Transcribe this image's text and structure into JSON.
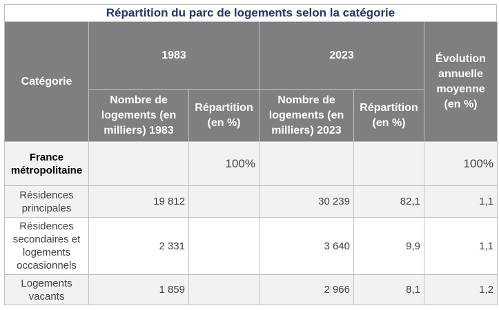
{
  "title": "Répartition du parc de logements selon la catégorie",
  "header": {
    "categorie": "Catégorie",
    "year1": "1983",
    "year2": "2023",
    "evolution": "Évolution annuelle moyenne (en %)",
    "nombre1983": "Nombre de logements (en milliers) 1983",
    "repartition1": "Répartition (en %)",
    "nombre2023": "Nombre de logements (en milliers) 2023",
    "repartition2": "Répartition (en %)"
  },
  "rows": [
    {
      "label": "France métropolitaine",
      "n1983": "",
      "r1983": "100%",
      "n2023": "",
      "r2023": "",
      "evol": "100%"
    },
    {
      "label": "Résidences principales",
      "n1983": "19 812",
      "r1983": "",
      "n2023": "30 239",
      "r2023": "82,1",
      "evol": "1,1"
    },
    {
      "label": "Résidences secondaires et logements occasionnels",
      "n1983": "2 331",
      "r1983": "",
      "n2023": "3 640",
      "r2023": "9,9",
      "evol": "1,1"
    },
    {
      "label": "Logements vacants",
      "n1983": "1 859",
      "r1983": "",
      "n2023": "2 966",
      "r2023": "8,1",
      "evol": "1,2"
    }
  ]
}
